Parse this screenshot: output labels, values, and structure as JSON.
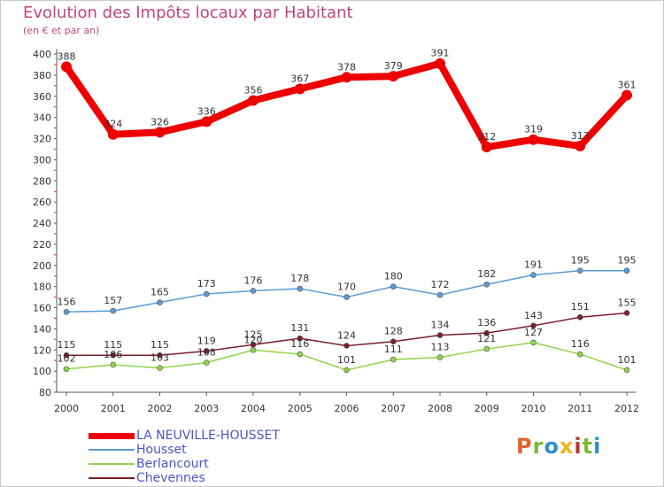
{
  "title": "Evolution des Impôts locaux par Habitant",
  "subtitle": "(en € et par an)",
  "logo": {
    "text": "Proxiti",
    "colors": [
      "#e2632a",
      "#7cb836",
      "#2f8fcf",
      "#f2b01e",
      "#c0392b",
      "#7cb836",
      "#2f8fcf"
    ]
  },
  "chart_data": {
    "type": "line",
    "title": "Evolution des Impôts locaux par Habitant",
    "subtitle": "(en € et par an)",
    "x": [
      "2000",
      "2001",
      "2002",
      "2003",
      "2004",
      "2005",
      "2006",
      "2007",
      "2008",
      "2009",
      "2010",
      "2011",
      "2012"
    ],
    "ylim": [
      80,
      400
    ],
    "yticks": [
      80,
      100,
      120,
      140,
      160,
      180,
      200,
      220,
      240,
      260,
      280,
      300,
      320,
      340,
      360,
      380,
      400
    ],
    "grid": false,
    "legend_position": "bottom-left",
    "series": [
      {
        "name": "LA NEUVILLE-HOUSSET",
        "color": "#ee0000",
        "values": [
          388,
          324,
          326,
          336,
          356,
          367,
          378,
          379,
          391,
          312,
          319,
          313,
          361
        ]
      },
      {
        "name": "Housset",
        "color": "#5b9bd5",
        "values": [
          156,
          157,
          165,
          173,
          176,
          178,
          170,
          180,
          172,
          182,
          191,
          195,
          195
        ]
      },
      {
        "name": "Berlancourt",
        "color": "#8fd44a",
        "values": [
          102,
          106,
          103,
          108,
          120,
          116,
          101,
          111,
          113,
          121,
          127,
          116,
          101
        ]
      },
      {
        "name": "Chevennes",
        "color": "#7a1f2b",
        "values": [
          115,
          115,
          115,
          119,
          125,
          131,
          124,
          128,
          134,
          136,
          143,
          151,
          155
        ]
      }
    ]
  }
}
